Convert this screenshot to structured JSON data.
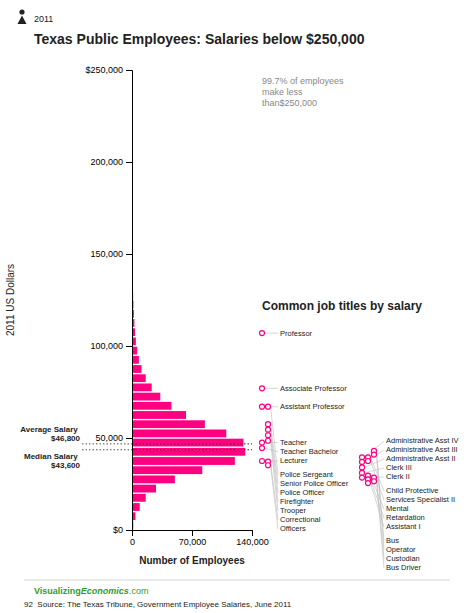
{
  "chart_data": {
    "type": "bar",
    "orientation": "horizontal",
    "title": "Texas Public Employees: Salaries below $250,000",
    "year": "2011",
    "subtitle": "Common job titles by salary",
    "note": "99.7% of employees\nmake less\nthan$250,000",
    "xlabel": "2011 US Dollars",
    "ylabel": "Number of Employees",
    "color": "#FF0080",
    "grid": false,
    "x": [
      2500,
      7500,
      12500,
      17500,
      22500,
      27500,
      32500,
      37500,
      42500,
      47500,
      52500,
      57500,
      62500,
      67500,
      72500,
      77500,
      82500,
      87500,
      92500,
      97500,
      102500,
      107500,
      112500,
      117500,
      122500,
      127500,
      132500,
      137500,
      142500,
      147500,
      152500,
      157500,
      162500,
      167500,
      172500,
      177500,
      182500,
      187500,
      192500,
      197500,
      202500,
      207500,
      212500,
      217500,
      222500,
      227500,
      232500,
      237500,
      242500,
      247500
    ],
    "values": [
      1500,
      4000,
      9000,
      16000,
      28000,
      50000,
      82000,
      120000,
      132000,
      130000,
      110000,
      85000,
      63000,
      46000,
      33000,
      23000,
      16000,
      11000,
      8000,
      6000,
      4500,
      3500,
      2800,
      2200,
      1700,
      1300,
      1000,
      800,
      600,
      500,
      400,
      300,
      250,
      200,
      160,
      130,
      100,
      80,
      65,
      50,
      40,
      32,
      25,
      20,
      16,
      12,
      10,
      8,
      6,
      4
    ],
    "xlim": [
      0,
      250000
    ],
    "xticks": [
      {
        "value": 0,
        "label": "$0"
      },
      {
        "value": 50000,
        "label": "50,000"
      },
      {
        "value": 100000,
        "label": "100,000"
      },
      {
        "value": 150000,
        "label": "150,000"
      },
      {
        "value": 200000,
        "label": "200,000"
      },
      {
        "value": 250000,
        "label": "$250,000"
      }
    ],
    "ylim": [
      0,
      140000
    ],
    "yticks": [
      0,
      {
        "value": 70000,
        "label": "70,000"
      },
      {
        "value": 140000,
        "label": "140,000"
      }
    ],
    "reference_lines": [
      {
        "value": 46800,
        "label": "Average Salary $46,800"
      },
      {
        "value": 43600,
        "label": "Median Salary $43,600"
      }
    ],
    "job_titles": [
      [
        {
          "label": "Professor",
          "value": 107000
        },
        {
          "label": "Associate Professor",
          "value": 77000
        },
        {
          "label": "Assistant Professor",
          "value": 67000
        },
        {
          "label": "Teacher",
          "value": 47500
        },
        {
          "label": "Teacher Bachelor",
          "value": 44500
        },
        {
          "label": "Lecturer",
          "value": 37500
        }
      ],
      [
        {
          "label": "Police Sergeant",
          "value": 67000
        },
        {
          "label": "Senior Police Officer",
          "value": 57500
        },
        {
          "label": "Police Officer",
          "value": 54500
        },
        {
          "label": "Firefighter",
          "value": 51500
        },
        {
          "label": "Trooper",
          "value": 48500
        },
        {
          "label": "Correctional",
          "value": 37200
        },
        {
          "label": "Officers",
          "value": 35200
        }
      ],
      [
        {
          "label": "Administrative Asst IV",
          "value": 39500
        },
        {
          "label": "Administrative Asst III",
          "value": 37000
        },
        {
          "label": "Administrative Asst II",
          "value": 34000
        },
        {
          "label": "Clerk III",
          "value": 31000
        },
        {
          "label": "Clerk II",
          "value": 28500
        }
      ],
      [
        {
          "label": "Child Protective",
          "value": 39500
        },
        {
          "label": "Services Specialist II",
          "value": 37500
        },
        {
          "label": "Mental",
          "value": 29500
        },
        {
          "label": "Retardation",
          "value": 27500
        },
        {
          "label": "Assistant I",
          "value": 25500
        }
      ],
      [
        {
          "label": "Bus",
          "value": 43000
        },
        {
          "label": "Operator",
          "value": 41000
        },
        {
          "label": "Custodian",
          "value": 28500
        },
        {
          "label": "Bus Driver",
          "value": 26500
        }
      ]
    ],
    "credit": [
      "Visualizing",
      "Economics",
      ".com"
    ],
    "source": "92  Source: The Texas Tribune, Government Employee Salaries, June 2011"
  }
}
